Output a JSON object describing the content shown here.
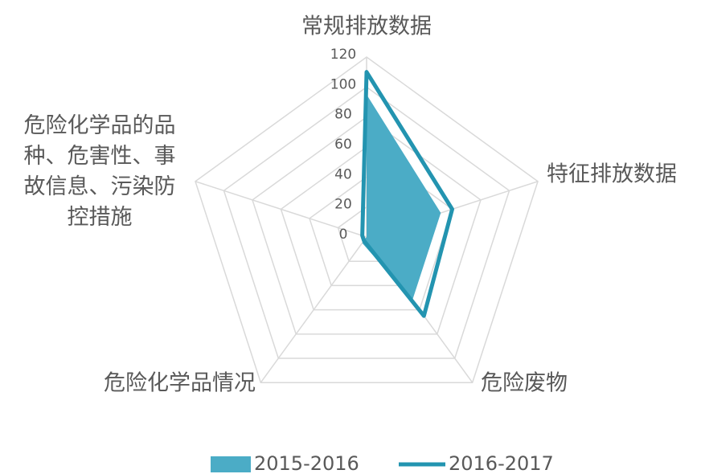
{
  "chart_data": {
    "type": "radar",
    "categories": [
      "常规排放数据",
      "特征排放数据",
      "危险废物",
      "危险化学品情况",
      "危险化学品的品种、危害性、事故信息、污染防控措施"
    ],
    "series": [
      {
        "name": "2015-2016",
        "color": "#4bacc6",
        "values": [
          95,
          52,
          52,
          5,
          0
        ]
      },
      {
        "name": "2016-2017",
        "color": "#2394b0",
        "values": [
          110,
          60,
          65,
          3,
          3
        ]
      }
    ],
    "ylim": [
      0,
      120
    ],
    "yticks": [
      0,
      20,
      40,
      60,
      80,
      100,
      120
    ],
    "grid": true,
    "legend": "bottom"
  }
}
